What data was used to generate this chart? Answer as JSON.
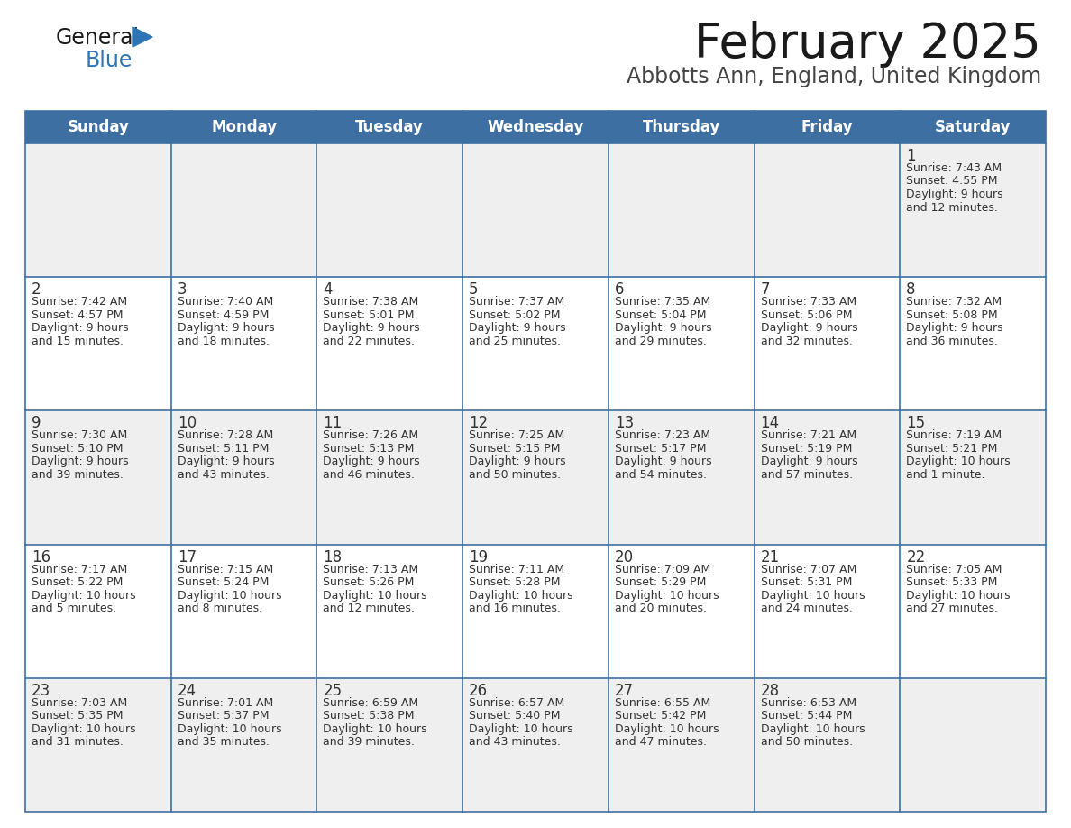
{
  "title": "February 2025",
  "subtitle": "Abbotts Ann, England, United Kingdom",
  "days_of_week": [
    "Sunday",
    "Monday",
    "Tuesday",
    "Wednesday",
    "Thursday",
    "Friday",
    "Saturday"
  ],
  "header_bg": "#3E6FA3",
  "header_text": "#FFFFFF",
  "cell_bg_light": "#EFEFEF",
  "cell_bg_white": "#FFFFFF",
  "border_color": "#3E6FA3",
  "text_color": "#333333",
  "title_color": "#1a1a1a",
  "subtitle_color": "#444444",
  "logo_general_color": "#1a1a1a",
  "logo_blue_color": "#2E75B6",
  "calendar_data": [
    [
      null,
      null,
      null,
      null,
      null,
      null,
      {
        "day": 1,
        "sunrise": "7:43 AM",
        "sunset": "4:55 PM",
        "daylight": "9 hours and 12 minutes"
      }
    ],
    [
      {
        "day": 2,
        "sunrise": "7:42 AM",
        "sunset": "4:57 PM",
        "daylight": "9 hours and 15 minutes"
      },
      {
        "day": 3,
        "sunrise": "7:40 AM",
        "sunset": "4:59 PM",
        "daylight": "9 hours and 18 minutes"
      },
      {
        "day": 4,
        "sunrise": "7:38 AM",
        "sunset": "5:01 PM",
        "daylight": "9 hours and 22 minutes"
      },
      {
        "day": 5,
        "sunrise": "7:37 AM",
        "sunset": "5:02 PM",
        "daylight": "9 hours and 25 minutes"
      },
      {
        "day": 6,
        "sunrise": "7:35 AM",
        "sunset": "5:04 PM",
        "daylight": "9 hours and 29 minutes"
      },
      {
        "day": 7,
        "sunrise": "7:33 AM",
        "sunset": "5:06 PM",
        "daylight": "9 hours and 32 minutes"
      },
      {
        "day": 8,
        "sunrise": "7:32 AM",
        "sunset": "5:08 PM",
        "daylight": "9 hours and 36 minutes"
      }
    ],
    [
      {
        "day": 9,
        "sunrise": "7:30 AM",
        "sunset": "5:10 PM",
        "daylight": "9 hours and 39 minutes"
      },
      {
        "day": 10,
        "sunrise": "7:28 AM",
        "sunset": "5:11 PM",
        "daylight": "9 hours and 43 minutes"
      },
      {
        "day": 11,
        "sunrise": "7:26 AM",
        "sunset": "5:13 PM",
        "daylight": "9 hours and 46 minutes"
      },
      {
        "day": 12,
        "sunrise": "7:25 AM",
        "sunset": "5:15 PM",
        "daylight": "9 hours and 50 minutes"
      },
      {
        "day": 13,
        "sunrise": "7:23 AM",
        "sunset": "5:17 PM",
        "daylight": "9 hours and 54 minutes"
      },
      {
        "day": 14,
        "sunrise": "7:21 AM",
        "sunset": "5:19 PM",
        "daylight": "9 hours and 57 minutes"
      },
      {
        "day": 15,
        "sunrise": "7:19 AM",
        "sunset": "5:21 PM",
        "daylight": "10 hours and 1 minute"
      }
    ],
    [
      {
        "day": 16,
        "sunrise": "7:17 AM",
        "sunset": "5:22 PM",
        "daylight": "10 hours and 5 minutes"
      },
      {
        "day": 17,
        "sunrise": "7:15 AM",
        "sunset": "5:24 PM",
        "daylight": "10 hours and 8 minutes"
      },
      {
        "day": 18,
        "sunrise": "7:13 AM",
        "sunset": "5:26 PM",
        "daylight": "10 hours and 12 minutes"
      },
      {
        "day": 19,
        "sunrise": "7:11 AM",
        "sunset": "5:28 PM",
        "daylight": "10 hours and 16 minutes"
      },
      {
        "day": 20,
        "sunrise": "7:09 AM",
        "sunset": "5:29 PM",
        "daylight": "10 hours and 20 minutes"
      },
      {
        "day": 21,
        "sunrise": "7:07 AM",
        "sunset": "5:31 PM",
        "daylight": "10 hours and 24 minutes"
      },
      {
        "day": 22,
        "sunrise": "7:05 AM",
        "sunset": "5:33 PM",
        "daylight": "10 hours and 27 minutes"
      }
    ],
    [
      {
        "day": 23,
        "sunrise": "7:03 AM",
        "sunset": "5:35 PM",
        "daylight": "10 hours and 31 minutes"
      },
      {
        "day": 24,
        "sunrise": "7:01 AM",
        "sunset": "5:37 PM",
        "daylight": "10 hours and 35 minutes"
      },
      {
        "day": 25,
        "sunrise": "6:59 AM",
        "sunset": "5:38 PM",
        "daylight": "10 hours and 39 minutes"
      },
      {
        "day": 26,
        "sunrise": "6:57 AM",
        "sunset": "5:40 PM",
        "daylight": "10 hours and 43 minutes"
      },
      {
        "day": 27,
        "sunrise": "6:55 AM",
        "sunset": "5:42 PM",
        "daylight": "10 hours and 47 minutes"
      },
      {
        "day": 28,
        "sunrise": "6:53 AM",
        "sunset": "5:44 PM",
        "daylight": "10 hours and 50 minutes"
      },
      null
    ]
  ]
}
